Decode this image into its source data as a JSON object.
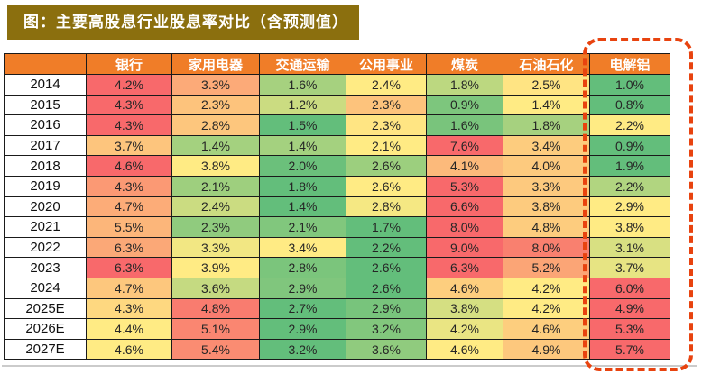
{
  "title": "图：主要高股息行业股息率对比（含预测值）",
  "chart_data": {
    "type": "heatmap",
    "title": "主要高股息行业股息率对比（含预测值）",
    "unit": "%",
    "columns": [
      "银行",
      "家用电器",
      "交通运输",
      "公用事业",
      "煤炭",
      "石油石化",
      "电解铝"
    ],
    "rows": [
      "2014",
      "2015",
      "2016",
      "2017",
      "2018",
      "2019",
      "2020",
      "2021",
      "2022",
      "2023",
      "2024",
      "2025E",
      "2026E",
      "2027E"
    ],
    "values": [
      [
        4.2,
        3.3,
        1.6,
        2.4,
        1.8,
        2.5,
        1.0
      ],
      [
        4.3,
        2.3,
        1.2,
        2.3,
        0.9,
        1.4,
        0.8
      ],
      [
        4.3,
        2.8,
        1.5,
        2.3,
        1.6,
        1.8,
        2.2
      ],
      [
        3.7,
        1.4,
        1.4,
        2.1,
        7.6,
        3.4,
        0.9
      ],
      [
        4.6,
        3.8,
        2.0,
        2.6,
        4.1,
        4.0,
        1.9
      ],
      [
        4.3,
        2.1,
        1.8,
        2.6,
        5.3,
        3.3,
        2.2
      ],
      [
        4.7,
        2.4,
        1.4,
        2.8,
        6.6,
        3.8,
        2.9
      ],
      [
        5.5,
        2.3,
        2.1,
        1.7,
        8.0,
        4.8,
        3.8
      ],
      [
        6.3,
        3.3,
        3.4,
        2.2,
        9.0,
        8.0,
        3.1
      ],
      [
        6.3,
        3.9,
        2.8,
        2.6,
        6.3,
        5.2,
        3.7
      ],
      [
        4.7,
        3.6,
        2.9,
        2.6,
        4.6,
        4.2,
        6.0
      ],
      [
        4.3,
        4.8,
        2.7,
        2.9,
        3.8,
        4.2,
        4.9
      ],
      [
        4.4,
        5.1,
        2.9,
        3.2,
        4.2,
        4.6,
        5.3
      ],
      [
        4.6,
        5.4,
        3.2,
        3.6,
        4.6,
        4.9,
        5.7
      ]
    ],
    "value_format": "one-decimal-percent",
    "color_scale": {
      "scope": "per-row",
      "midpoint": "row-median",
      "min_color": "#63BE7B",
      "mid_color": "#FFEB84",
      "max_color": "#F8696B"
    },
    "highlighted_column": "电解铝",
    "legend_position": "none",
    "grid": true
  },
  "colors": {
    "title_bg": "#8B6F0E",
    "title_text": "#FFFFFF",
    "header_bg": "#F07D28",
    "header_text": "#FFFFFF",
    "grid_line": "#1A1A1A",
    "row_label_bg": "#FFFFFF",
    "highlight_border": "#E8430F"
  }
}
